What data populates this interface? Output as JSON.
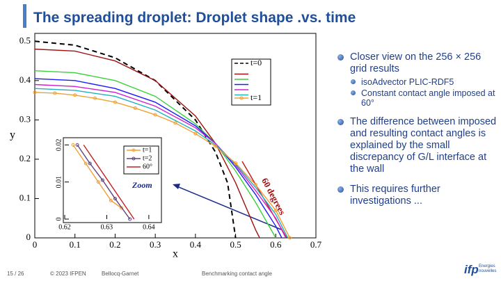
{
  "title": "The spreading droplet: Droplet shape .vs. time",
  "bullets": [
    {
      "text": "Closer view on the 256 × 256 grid results",
      "sub": [
        "isoAdvector PLIC-RDF5",
        "Constant contact angle imposed at 60°"
      ]
    },
    {
      "text": "The difference between imposed and resulting contact angles is explained by the small discrepancy of G/L interface at the wall",
      "sub": []
    },
    {
      "text": "This requires further investigations ...",
      "sub": []
    }
  ],
  "footer": {
    "page": "15 / 26",
    "copyright": "© 2023 IFPEN",
    "author": "Bellocq-Garnet",
    "subject": "Benchmarking contact angle",
    "logo": "ifp",
    "logo_text": "Energies nouvelles"
  },
  "chart_data": [
    {
      "type": "line",
      "x_label": "x",
      "y_label": "y",
      "annotation": "60 degrees",
      "xlim": [
        0,
        0.7
      ],
      "ylim": [
        0,
        0.52
      ],
      "xticks": [
        0,
        0.1,
        0.2,
        0.3,
        0.4,
        0.5,
        0.6,
        0.7
      ],
      "yticks": [
        0,
        0.1,
        0.2,
        0.3,
        0.4,
        0.5
      ],
      "series": [
        {
          "name": "t=0",
          "color": "#000000",
          "dash": true,
          "x": [
            0,
            0.1,
            0.2,
            0.3,
            0.4,
            0.45,
            0.48,
            0.5
          ],
          "values": [
            0.5,
            0.49,
            0.458,
            0.4,
            0.3,
            0.218,
            0.14,
            0
          ]
        },
        {
          "color": "#a01010",
          "x": [
            0,
            0.1,
            0.2,
            0.3,
            0.4,
            0.45,
            0.5,
            0.55,
            0.56
          ],
          "values": [
            0.48,
            0.475,
            0.45,
            0.4,
            0.31,
            0.24,
            0.14,
            0.02,
            0
          ]
        },
        {
          "color": "#3ad13a",
          "x": [
            0,
            0.1,
            0.2,
            0.3,
            0.4,
            0.45,
            0.5,
            0.55,
            0.6
          ],
          "values": [
            0.425,
            0.42,
            0.4,
            0.36,
            0.29,
            0.24,
            0.17,
            0.09,
            0
          ]
        },
        {
          "color": "#1a1aff",
          "x": [
            0,
            0.1,
            0.2,
            0.3,
            0.4,
            0.45,
            0.5,
            0.55,
            0.6,
            0.615
          ],
          "values": [
            0.405,
            0.4,
            0.38,
            0.345,
            0.285,
            0.24,
            0.18,
            0.11,
            0.03,
            0
          ]
        },
        {
          "color": "#d020d0",
          "x": [
            0,
            0.1,
            0.2,
            0.3,
            0.4,
            0.45,
            0.5,
            0.55,
            0.6,
            0.625
          ],
          "values": [
            0.39,
            0.385,
            0.37,
            0.335,
            0.28,
            0.24,
            0.185,
            0.12,
            0.05,
            0
          ]
        },
        {
          "color": "#20b0c0",
          "x": [
            0,
            0.1,
            0.2,
            0.3,
            0.4,
            0.45,
            0.5,
            0.55,
            0.6,
            0.63
          ],
          "values": [
            0.38,
            0.375,
            0.36,
            0.325,
            0.272,
            0.236,
            0.188,
            0.128,
            0.06,
            0
          ]
        },
        {
          "name": "t=1",
          "color": "#f0a030",
          "marker": "circle",
          "x": [
            0,
            0.05,
            0.1,
            0.15,
            0.2,
            0.25,
            0.3,
            0.35,
            0.4,
            0.45,
            0.5,
            0.55,
            0.6,
            0.635
          ],
          "values": [
            0.37,
            0.368,
            0.363,
            0.355,
            0.345,
            0.33,
            0.313,
            0.292,
            0.265,
            0.233,
            0.19,
            0.135,
            0.07,
            0
          ]
        }
      ]
    },
    {
      "type": "line",
      "annotation": "Zoom",
      "xlim": [
        0.62,
        0.643
      ],
      "ylim": [
        0,
        0.021
      ],
      "xticks": [
        0.62,
        0.63,
        0.64
      ],
      "yticks": [
        0,
        0.01,
        0.02
      ],
      "series": [
        {
          "name": "t=1",
          "color": "#f0a030",
          "marker": "circle",
          "x": [
            0.622,
            0.625,
            0.628,
            0.631,
            0.6335
          ],
          "values": [
            0.02,
            0.015,
            0.01,
            0.005,
            0.003
          ]
        },
        {
          "name": "t=2",
          "color": "#604080",
          "marker": "circle",
          "x": [
            0.623,
            0.626,
            0.629,
            0.632,
            0.6355
          ],
          "values": [
            0.02,
            0.015,
            0.0105,
            0.0055,
            0
          ]
        },
        {
          "name": "60°",
          "color": "#c02020",
          "x": [
            0.6245,
            0.6365
          ],
          "values": [
            0.02,
            0
          ]
        }
      ]
    }
  ]
}
